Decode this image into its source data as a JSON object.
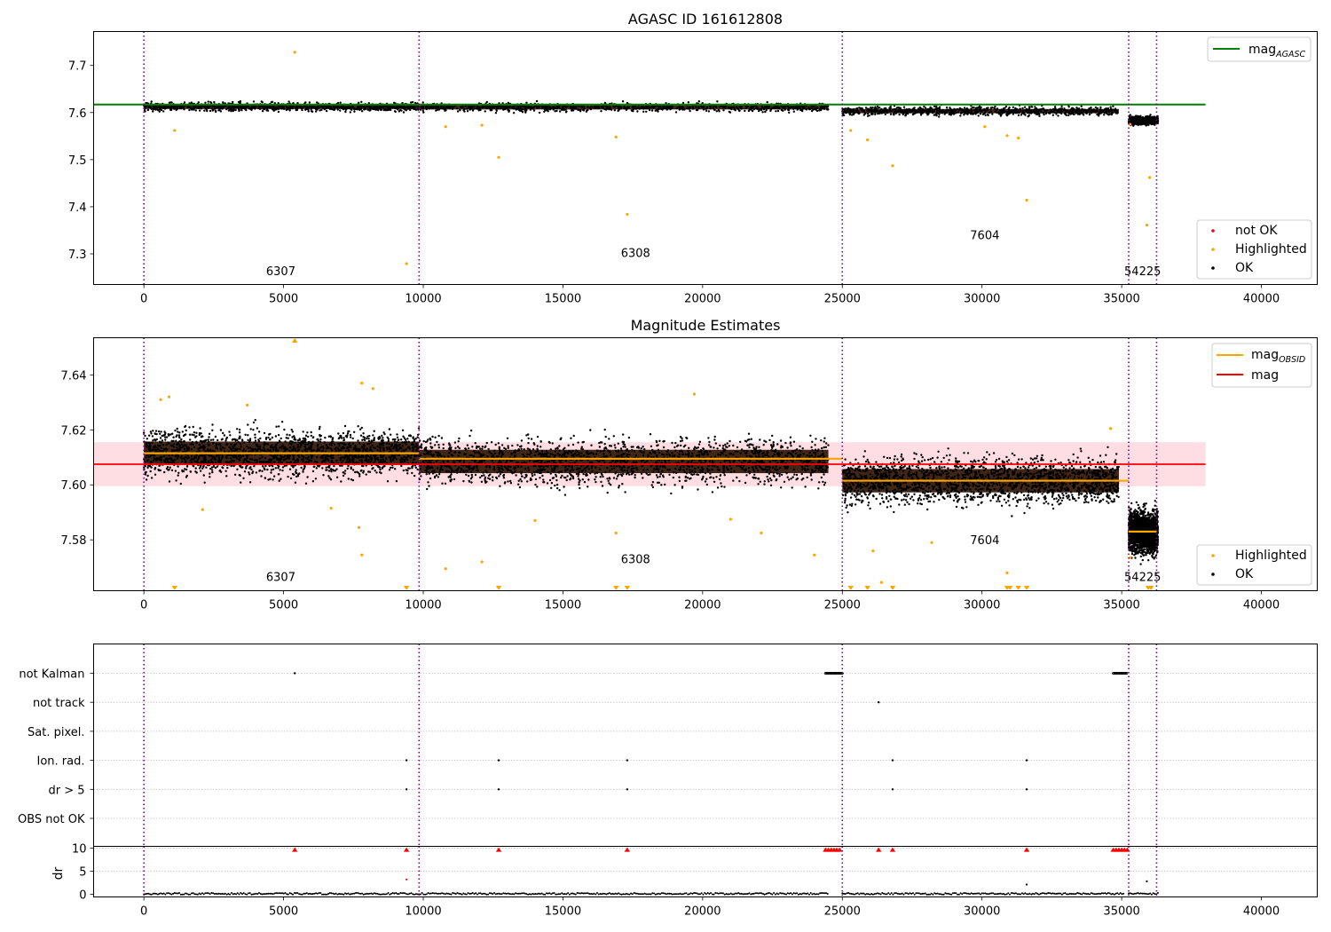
{
  "chart_data": [
    {
      "type": "scatter",
      "title": "AGASC ID 161612808",
      "xlabel": "",
      "ylabel": "",
      "xlim": [
        -1800,
        42000
      ],
      "ylim": [
        7.235,
        7.772
      ],
      "xticks": [
        0,
        5000,
        10000,
        15000,
        20000,
        25000,
        30000,
        35000,
        40000
      ],
      "xtick_labels": [
        "0",
        "5000",
        "10000",
        "15000",
        "20000",
        "25000",
        "30000",
        "35000",
        "40000"
      ],
      "yticks": [
        7.3,
        7.4,
        7.5,
        7.6,
        7.7
      ],
      "ytick_labels": [
        "7.3",
        "7.4",
        "7.5",
        "7.6",
        "7.7"
      ],
      "obs_boundaries": [
        0,
        9850,
        25000,
        35250,
        36250
      ],
      "obs_labels": [
        {
          "text": "6307",
          "x": 4900,
          "y": 7.255
        },
        {
          "text": "6308",
          "x": 17600,
          "y": 7.293
        },
        {
          "text": "7604",
          "x": 30100,
          "y": 7.331
        },
        {
          "text": "54225",
          "x": 35750,
          "y": 7.255
        }
      ],
      "mag_agasc": {
        "value": 7.617,
        "x_range": [
          -1800,
          38000
        ]
      },
      "ok_segments": [
        {
          "x_range": [
            0,
            9850
          ],
          "center": 7.612,
          "spread": 0.009
        },
        {
          "x_range": [
            9850,
            24500
          ],
          "center": 7.611,
          "spread": 0.009
        },
        {
          "x_range": [
            25000,
            34900
          ],
          "center": 7.603,
          "spread": 0.009
        },
        {
          "x_range": [
            35250,
            36300
          ],
          "center": 7.583,
          "spread": 0.008
        }
      ],
      "highlighted_outliers": [
        {
          "x": 5400,
          "y": 7.728
        },
        {
          "x": 1100,
          "y": 7.562
        },
        {
          "x": 9400,
          "y": 7.279
        },
        {
          "x": 10800,
          "y": 7.57
        },
        {
          "x": 12100,
          "y": 7.573
        },
        {
          "x": 12700,
          "y": 7.505
        },
        {
          "x": 16900,
          "y": 7.548
        },
        {
          "x": 17300,
          "y": 7.384
        },
        {
          "x": 25300,
          "y": 7.562
        },
        {
          "x": 25900,
          "y": 7.542
        },
        {
          "x": 26800,
          "y": 7.487
        },
        {
          "x": 30100,
          "y": 7.57
        },
        {
          "x": 30900,
          "y": 7.551
        },
        {
          "x": 31300,
          "y": 7.546
        },
        {
          "x": 31600,
          "y": 7.414
        },
        {
          "x": 35900,
          "y": 7.361
        },
        {
          "x": 36000,
          "y": 7.462
        },
        {
          "x": 35300,
          "y": 7.575
        }
      ],
      "legend_1": {
        "placement": "top-right",
        "entries": [
          {
            "label": "mag",
            "subscript": "AGASC",
            "color": "#008000"
          }
        ]
      },
      "legend_2": {
        "placement": "bottom-right",
        "entries": [
          {
            "label": "not OK",
            "color": "#ff0000"
          },
          {
            "label": "Highlighted",
            "color": "#ffa500"
          },
          {
            "label": "OK",
            "color": "#000000"
          }
        ]
      }
    },
    {
      "type": "scatter",
      "title": "Magnitude Estimates",
      "xlabel": "",
      "ylabel": "",
      "xlim": [
        -1800,
        42000
      ],
      "ylim": [
        7.5615,
        7.6535
      ],
      "xticks": [
        0,
        5000,
        10000,
        15000,
        20000,
        25000,
        30000,
        35000,
        40000
      ],
      "xtick_labels": [
        "0",
        "5000",
        "10000",
        "15000",
        "20000",
        "25000",
        "30000",
        "35000",
        "40000"
      ],
      "yticks": [
        7.58,
        7.6,
        7.62,
        7.64
      ],
      "ytick_labels": [
        "7.58",
        "7.60",
        "7.62",
        "7.64"
      ],
      "obs_boundaries": [
        0,
        9850,
        25000,
        35250,
        36250
      ],
      "obs_labels": [
        {
          "text": "6307",
          "x": 4900,
          "y": 7.565
        },
        {
          "text": "6308",
          "x": 17600,
          "y": 7.5715
        },
        {
          "text": "7604",
          "x": 30100,
          "y": 7.5785
        },
        {
          "text": "54225",
          "x": 35750,
          "y": 7.565
        }
      ],
      "mag": {
        "value": 7.6075,
        "band": [
          7.5995,
          7.6155
        ],
        "x_range": [
          -1800,
          38000
        ]
      },
      "mag_obsid": [
        {
          "x_range": [
            0,
            9850
          ],
          "value": 7.6115
        },
        {
          "x_range": [
            9850,
            25000
          ],
          "value": 7.6095
        },
        {
          "x_range": [
            25000,
            35250
          ],
          "value": 7.6015
        },
        {
          "x_range": [
            35250,
            36250
          ],
          "value": 7.583
        }
      ],
      "ok_segments": [
        {
          "x_range": [
            0,
            9850
          ],
          "center": 7.6115,
          "spread": 0.0085
        },
        {
          "x_range": [
            9850,
            24500
          ],
          "center": 7.6085,
          "spread": 0.0085
        },
        {
          "x_range": [
            25000,
            34900
          ],
          "center": 7.6015,
          "spread": 0.0085
        },
        {
          "x_range": [
            35250,
            36300
          ],
          "center": 7.583,
          "spread": 0.0075
        }
      ],
      "highlighted_outliers": [
        {
          "x": 5400,
          "y": 7.6525
        },
        {
          "x": 7800,
          "y": 7.637
        },
        {
          "x": 8200,
          "y": 7.635
        },
        {
          "x": 600,
          "y": 7.631
        },
        {
          "x": 900,
          "y": 7.632
        },
        {
          "x": 3700,
          "y": 7.629
        },
        {
          "x": 7700,
          "y": 7.5845
        },
        {
          "x": 7800,
          "y": 7.5745
        },
        {
          "x": 10800,
          "y": 7.5695
        },
        {
          "x": 12100,
          "y": 7.572
        },
        {
          "x": 14000,
          "y": 7.587
        },
        {
          "x": 16900,
          "y": 7.5825
        },
        {
          "x": 19700,
          "y": 7.633
        },
        {
          "x": 21000,
          "y": 7.5875
        },
        {
          "x": 22100,
          "y": 7.5825
        },
        {
          "x": 24000,
          "y": 7.5745
        },
        {
          "x": 26100,
          "y": 7.576
        },
        {
          "x": 26400,
          "y": 7.5645
        },
        {
          "x": 28200,
          "y": 7.579
        },
        {
          "x": 30900,
          "y": 7.568
        },
        {
          "x": 34600,
          "y": 7.6205
        },
        {
          "x": 35300,
          "y": 7.5735
        },
        {
          "x": 2100,
          "y": 7.591
        },
        {
          "x": 6700,
          "y": 7.5915
        }
      ],
      "clipped_markers_x": [
        1100,
        9400,
        12700,
        16900,
        17300,
        25300,
        25900,
        26800,
        30900,
        31000,
        31300,
        31600,
        35950,
        36050
      ],
      "legend_1": {
        "placement": "top-right",
        "entries": [
          {
            "label": "mag",
            "subscript": "OBSID",
            "color": "#ffa500"
          },
          {
            "label": "mag",
            "subscript": "",
            "color": "#ff0000"
          }
        ]
      },
      "legend_2": {
        "placement": "bottom-right",
        "entries": [
          {
            "label": "Highlighted",
            "color": "#ffa500"
          },
          {
            "label": "OK",
            "color": "#000000"
          }
        ]
      }
    },
    {
      "type": "scatter",
      "title": "",
      "xlabel": "",
      "ylabel": "",
      "xlim": [
        -1800,
        42000
      ],
      "categories": [
        "not Kalman",
        "not track",
        "Sat. pixel.",
        "Ion. rad.",
        "dr > 5",
        "OBS not OK"
      ],
      "grid": "horizontal dotted",
      "obs_boundaries": [
        0,
        9850,
        25000,
        35250,
        36250
      ],
      "flag_points": [
        {
          "category": "not Kalman",
          "x": [
            5400
          ]
        },
        {
          "category": "not Kalman",
          "x_range": [
            24400,
            25000
          ]
        },
        {
          "category": "not Kalman",
          "x_range": [
            34700,
            35200
          ]
        },
        {
          "category": "not track",
          "x": [
            26300
          ]
        },
        {
          "category": "Ion. rad.",
          "x": [
            9400,
            12700,
            17300,
            26800,
            31600
          ]
        },
        {
          "category": "dr > 5",
          "x": [
            9400,
            12700,
            17300,
            26800,
            31600
          ]
        }
      ]
    },
    {
      "type": "scatter",
      "title": "",
      "xlabel": "",
      "ylabel": "dr",
      "xlim": [
        -1800,
        42000
      ],
      "ylim": [
        -0.6,
        10.4
      ],
      "xticks": [
        0,
        5000,
        10000,
        15000,
        20000,
        25000,
        30000,
        35000,
        40000
      ],
      "xtick_labels": [
        "0",
        "5000",
        "10000",
        "15000",
        "20000",
        "25000",
        "30000",
        "35000",
        "40000"
      ],
      "yticks": [
        0,
        5,
        10
      ],
      "ytick_labels": [
        "0",
        "5",
        "10"
      ],
      "obs_boundaries": [
        0,
        9850,
        25000,
        35250,
        36250
      ],
      "baseline": {
        "value": 0.1,
        "segments": [
          [
            0,
            24500
          ],
          [
            25000,
            35100
          ],
          [
            35250,
            36300
          ]
        ]
      },
      "clipped_markers_x": [
        5400,
        9400,
        12700,
        17300,
        24400,
        24500,
        24600,
        24700,
        24800,
        24900,
        26300,
        26800,
        31600,
        34700,
        34800,
        34900,
        35000,
        35100,
        35200
      ],
      "extra_points": [
        {
          "x": 9400,
          "y": 3.2
        },
        {
          "x": 31600,
          "y": 2.1
        },
        {
          "x": 35900,
          "y": 2.8
        }
      ]
    }
  ]
}
